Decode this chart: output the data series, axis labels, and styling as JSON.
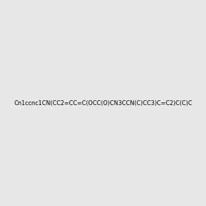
{
  "smiles": "Cn1ccnc1CN(CC2=CC=C(OCC(O)CN3CCN(C)CC3)C=C2)C(C)C",
  "background_color": "#e8e8e8",
  "bond_color": "#000000",
  "atom_colors": {
    "N": "#0000ff",
    "O": "#ff0000",
    "H_label": "#2e8b57"
  },
  "figsize": [
    3.0,
    3.0
  ],
  "dpi": 100,
  "title": ""
}
